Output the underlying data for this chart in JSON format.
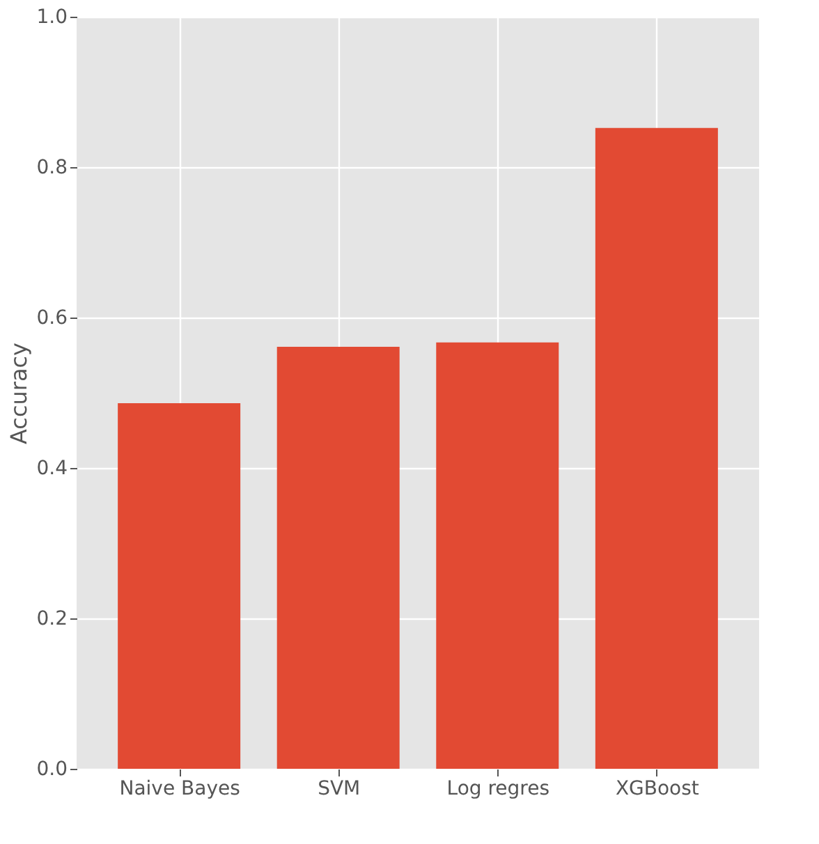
{
  "chart_data": {
    "type": "bar",
    "ylabel": "Accuracy",
    "categories": [
      "Naive Bayes",
      "SVM",
      "Log regres",
      "XGBoost"
    ],
    "values": [
      0.486,
      0.561,
      0.567,
      0.852
    ],
    "color": "#e24a33",
    "ylim": [
      0,
      1.0
    ],
    "yticks": [
      {
        "value": 0,
        "label": "0.0"
      },
      0.2,
      0.4,
      0.6,
      0.8,
      {
        "value": 1.0,
        "label": "1.0"
      }
    ],
    "grid": true
  }
}
